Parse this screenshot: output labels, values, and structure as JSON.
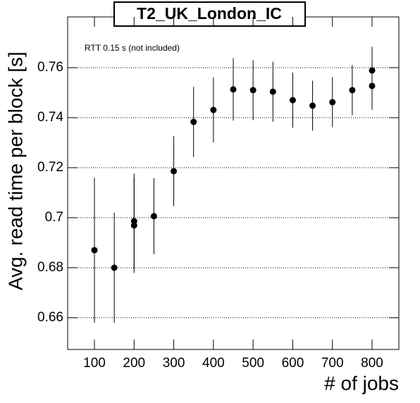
{
  "chart_data": {
    "type": "scatter",
    "title": "T2_UK_London_IC",
    "annotation": "RTT 0.15 s (not included)",
    "x_label": "# of jobs",
    "y_label": "Avg. read time per block [s]",
    "series": [
      {
        "name": "T2_UK_London_IC",
        "color": "#000000",
        "x": [
          100,
          150,
          200,
          200,
          250,
          300,
          350,
          400,
          450,
          500,
          550,
          600,
          650,
          700,
          750,
          800,
          800
        ],
        "values": [
          0.687,
          0.68,
          0.6986,
          0.6969,
          0.7006,
          0.7186,
          0.7383,
          0.7431,
          0.7513,
          0.751,
          0.7504,
          0.747,
          0.7448,
          0.7462,
          0.751,
          0.7589,
          0.7527
        ],
        "errors": [
          0.029,
          0.022,
          0.019,
          0.019,
          0.0152,
          0.014,
          0.014,
          0.013,
          0.0125,
          0.012,
          0.012,
          0.011,
          0.01,
          0.01,
          0.01,
          0.0095,
          0.0095
        ]
      }
    ],
    "xlim": [
      32.5,
      867.5
    ],
    "ylim": [
      0.6473,
      0.7803
    ],
    "xticks": [
      100,
      200,
      300,
      400,
      500,
      600,
      700,
      800
    ],
    "yticks": [
      0.66,
      0.68,
      0.7,
      0.72,
      0.74,
      0.76
    ],
    "grid": true
  }
}
